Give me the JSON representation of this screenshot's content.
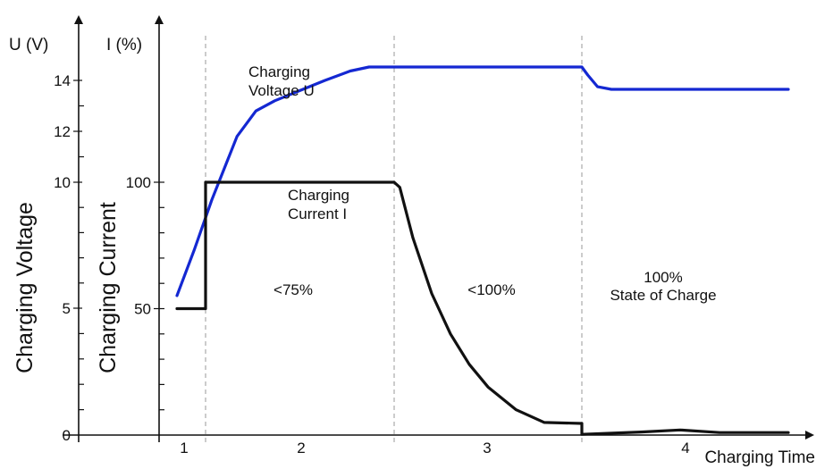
{
  "chart_data": {
    "type": "line",
    "title": "",
    "axes": {
      "voltage_axis": {
        "unit_label": "U (V)",
        "title": "Charging Voltage",
        "ticks": [
          0,
          5,
          10,
          12,
          14
        ],
        "range": [
          0,
          14.5
        ]
      },
      "current_axis": {
        "unit_label": "I (%)",
        "title": "Charging Current",
        "ticks": [
          50,
          100
        ],
        "range": [
          0,
          102
        ]
      },
      "time_axis": {
        "title": "Charging Time",
        "phase_labels": [
          "1",
          "2",
          "3",
          "4"
        ]
      }
    },
    "phase_boundaries": [
      1,
      2.5,
      3.5
    ],
    "x_range": [
      0,
      5
    ],
    "phase_annotations": [
      {
        "phase": 2,
        "lines": [
          "<75%"
        ]
      },
      {
        "phase": 3,
        "lines": [
          "<100%"
        ]
      },
      {
        "phase": 4,
        "lines": [
          "100%",
          "State of Charge"
        ]
      }
    ],
    "series": [
      {
        "name": "Charging Voltage U",
        "label_lines": [
          "Charging",
          "Voltage U"
        ],
        "axis": "voltage",
        "color": "#1428d2",
        "x": [
          0.75,
          0.9,
          1.05,
          1.25,
          1.4,
          1.55,
          1.75,
          1.95,
          2.15,
          2.3,
          2.5,
          3.5,
          3.53,
          3.58,
          3.65,
          4.55
        ],
        "y": [
          5.5,
          7.3,
          9.3,
          11.8,
          12.8,
          13.2,
          13.6,
          14.0,
          14.35,
          14.5,
          14.5,
          14.5,
          14.2,
          13.75,
          13.65,
          13.65
        ]
      },
      {
        "name": "Charging Current I",
        "label_lines": [
          "Charging",
          "Current  I"
        ],
        "axis": "current",
        "color": "#111111",
        "x": [
          0.75,
          1.0,
          1.0,
          2.5,
          2.53,
          2.6,
          2.7,
          2.8,
          2.9,
          3.0,
          3.15,
          3.3,
          3.5,
          3.5,
          3.8,
          4.0,
          4.2,
          4.55
        ],
        "y": [
          50,
          50,
          100,
          100,
          98,
          78,
          56,
          40,
          28,
          19,
          10,
          5,
          4.6,
          0.3,
          1.2,
          2.0,
          1.0,
          1.0
        ]
      }
    ]
  }
}
